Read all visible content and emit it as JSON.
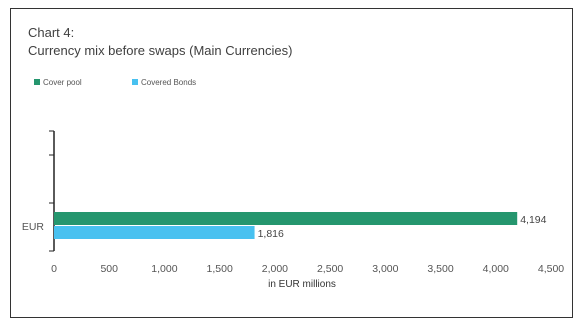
{
  "chart_data": {
    "type": "bar",
    "orientation": "horizontal",
    "title": "Chart 4:",
    "subtitle": "Currency mix before swaps (Main Currencies)",
    "categories": [
      "EUR"
    ],
    "series": [
      {
        "name": "Cover pool",
        "values": [
          4194
        ],
        "labels": [
          "4,194"
        ],
        "color": "#25966e"
      },
      {
        "name": "Covered Bonds",
        "values": [
          1816
        ],
        "labels": [
          "1,816"
        ],
        "color": "#48c1f0"
      }
    ],
    "xlabel": "in EUR millions",
    "ylabel": "",
    "xlim": [
      0,
      4500
    ],
    "xticks": [
      0,
      500,
      1000,
      1500,
      2000,
      2500,
      3000,
      3500,
      4000,
      4500
    ],
    "xtick_labels": [
      "0",
      "500",
      "1,000",
      "1,500",
      "2,000",
      "2,500",
      "3,000",
      "3,500",
      "4,000",
      "4,500"
    ],
    "grid": false,
    "legend_position": "top-left"
  }
}
